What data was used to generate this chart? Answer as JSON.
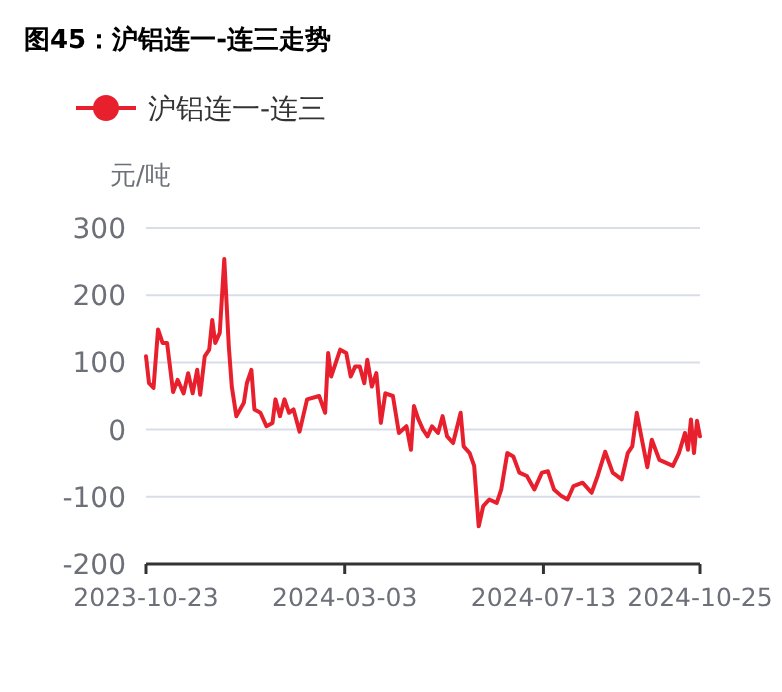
{
  "chart_data": {
    "type": "line",
    "title": "图45：沪铝连一-连三走势",
    "ylabel": "元/吨",
    "x": [
      "2023-10-23",
      "2023-10-25",
      "2023-10-28",
      "2023-10-31",
      "2023-11-03",
      "2023-11-06",
      "2023-11-10",
      "2023-11-13",
      "2023-11-17",
      "2023-11-20",
      "2023-11-23",
      "2023-11-26",
      "2023-11-28",
      "2023-12-01",
      "2023-12-04",
      "2023-12-06",
      "2023-12-08",
      "2023-12-11",
      "2023-12-14",
      "2023-12-17",
      "2023-12-19",
      "2023-12-22",
      "2023-12-27",
      "2023-12-29",
      "2024-01-01",
      "2024-01-03",
      "2024-01-07",
      "2024-01-11",
      "2024-01-15",
      "2024-01-17",
      "2024-01-20",
      "2024-01-23",
      "2024-01-26",
      "2024-01-29",
      "2024-02-02",
      "2024-02-07",
      "2024-02-15",
      "2024-02-19",
      "2024-02-21",
      "2024-02-23",
      "2024-02-26",
      "2024-02-29",
      "2024-03-04",
      "2024-03-07",
      "2024-03-10",
      "2024-03-13",
      "2024-03-16",
      "2024-03-18",
      "2024-03-21",
      "2024-03-24",
      "2024-03-27",
      "2024-03-30",
      "2024-04-04",
      "2024-04-08",
      "2024-04-13",
      "2024-04-16",
      "2024-04-18",
      "2024-04-21",
      "2024-04-24",
      "2024-04-27",
      "2024-04-30",
      "2024-05-04",
      "2024-05-07",
      "2024-05-10",
      "2024-05-14",
      "2024-05-19",
      "2024-05-21",
      "2024-05-25",
      "2024-05-28",
      "2024-05-31",
      "2024-06-03",
      "2024-06-07",
      "2024-06-12",
      "2024-06-15",
      "2024-06-19",
      "2024-06-23",
      "2024-06-27",
      "2024-07-02",
      "2024-07-07",
      "2024-07-12",
      "2024-07-16",
      "2024-07-20",
      "2024-07-25",
      "2024-07-29",
      "2024-08-02",
      "2024-08-08",
      "2024-08-14",
      "2024-08-18",
      "2024-08-23",
      "2024-08-28",
      "2024-09-03",
      "2024-09-07",
      "2024-09-10",
      "2024-09-13",
      "2024-09-16",
      "2024-09-20",
      "2024-09-23",
      "2024-09-28",
      "2024-10-07",
      "2024-10-11",
      "2024-10-15",
      "2024-10-17",
      "2024-10-19",
      "2024-10-21",
      "2024-10-23",
      "2024-10-25"
    ],
    "series": [
      {
        "name": "沪铝连一-连三",
        "color": "#e8202e",
        "values": [
          109,
          69,
          62,
          149,
          129,
          129,
          56,
          74,
          54,
          84,
          54,
          89,
          52,
          109,
          119,
          163,
          129,
          144,
          254,
          124,
          64,
          20,
          40,
          69,
          89,
          30,
          25,
          5,
          10,
          45,
          20,
          45,
          25,
          30,
          -3,
          45,
          50,
          25,
          114,
          79,
          99,
          119,
          114,
          79,
          94,
          94,
          69,
          104,
          64,
          84,
          10,
          54,
          50,
          -5,
          5,
          -30,
          35,
          15,
          0,
          -10,
          5,
          -5,
          20,
          -10,
          -20,
          25,
          -25,
          -35,
          -54,
          -144,
          -114,
          -104,
          -109,
          -89,
          -35,
          -40,
          -64,
          -69,
          -89,
          -64,
          -62,
          -89,
          -99,
          -104,
          -84,
          -79,
          -94,
          -69,
          -33,
          -64,
          -74,
          -35,
          -25,
          25,
          -10,
          -56,
          -15,
          -45,
          -54,
          -35,
          -5,
          -30,
          15,
          -35,
          13,
          -10
        ]
      }
    ],
    "xlim": [
      "2023-10-23",
      "2024-10-25"
    ],
    "xticks": [
      "2023-10-23",
      "2024-03-03",
      "2024-07-13",
      "2024-10-25"
    ],
    "ylim": [
      -200,
      300
    ],
    "yticks": [
      -200,
      -100,
      0,
      100,
      200,
      300
    ],
    "grid": "y",
    "legend": "top left",
    "marker": "none",
    "line_style": "solid"
  }
}
